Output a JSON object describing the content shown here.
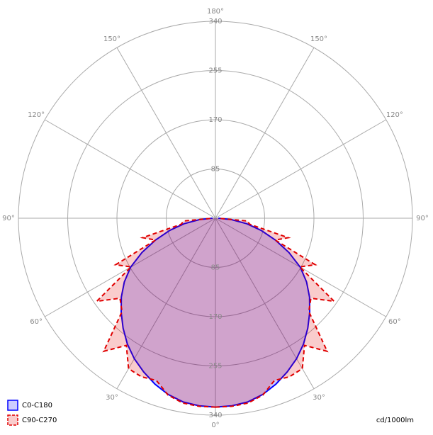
{
  "chart_data": {
    "type": "polar",
    "unit": "cd/1000lm",
    "angles": [
      0,
      5,
      10,
      15,
      20,
      25,
      30,
      35,
      40,
      45,
      50,
      55,
      60,
      65,
      70,
      75,
      80,
      85,
      90
    ],
    "series": [
      {
        "name": "C0-C180",
        "color": "#0000ff",
        "dashed": false,
        "values": [
          326,
          325,
          322,
          315,
          305,
          293,
          280,
          265,
          248,
          230,
          212,
          192,
          169,
          140,
          110,
          82,
          55,
          28,
          5
        ]
      },
      {
        "name": "C90-C270",
        "color": "#e00000",
        "dashed": true,
        "values": [
          326,
          326,
          324,
          316,
          298,
          302,
          300,
          268,
          300,
          228,
          215,
          250,
          168,
          190,
          110,
          130,
          60,
          55,
          5
        ]
      }
    ],
    "rlim": [
      0,
      340
    ],
    "rticks": [
      85,
      170,
      255,
      340
    ],
    "angle_ticks": [
      {
        "value": 0,
        "label": "0°"
      },
      {
        "value": 30,
        "label": "30°"
      },
      {
        "value": 60,
        "label": "60°"
      },
      {
        "value": 90,
        "label": "90°"
      },
      {
        "value": 120,
        "label": "120°"
      },
      {
        "value": 150,
        "label": "150°"
      },
      {
        "value": 180,
        "label": "180°"
      }
    ],
    "legend": "bottom-left"
  }
}
